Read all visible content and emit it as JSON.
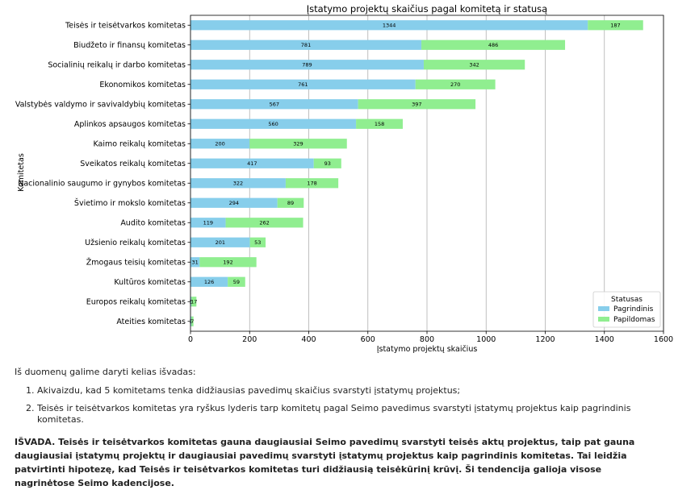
{
  "chart_data": {
    "type": "bar",
    "orientation": "horizontal",
    "stacked": true,
    "title": "Įstatymo projektų skaičius pagal komitetą ir statusą",
    "xlabel": "Įstatymo projektų skaičius",
    "ylabel": "Komitetas",
    "xlim": [
      0,
      1600
    ],
    "xticks": [
      "0",
      "200",
      "400",
      "600",
      "800",
      "1000",
      "1200",
      "1400",
      "1600"
    ],
    "grid": "vertical",
    "legend": {
      "title": "Statusas",
      "placement": "bottom-right"
    },
    "categories": [
      "Teisės ir teisėtvarkos komitetas",
      "Biudžeto ir finansų komitetas",
      "Socialinių reikalų ir darbo komitetas",
      "Ekonomikos komitetas",
      "Valstybės valdymo ir savivaldybių komitetas",
      "Aplinkos apsaugos komitetas",
      "Kaimo reikalų komitetas",
      "Sveikatos reikalų komitetas",
      "Nacionalinio saugumo ir gynybos komitetas",
      "Švietimo ir mokslo komitetas",
      "Audito komitetas",
      "Užsienio reikalų komitetas",
      "Žmogaus teisių komitetas",
      "Kultūros komitetas",
      "Europos reikalų komitetas",
      "Ateities komitetas"
    ],
    "series": [
      {
        "name": "Pagrindinis",
        "color": "#87ceeb",
        "values": [
          1344,
          781,
          789,
          761,
          567,
          560,
          200,
          417,
          322,
          294,
          119,
          201,
          31,
          126,
          3,
          3
        ]
      },
      {
        "name": "Papildomas",
        "color": "#90ee90",
        "values": [
          187,
          486,
          342,
          270,
          397,
          158,
          329,
          93,
          178,
          89,
          262,
          53,
          192,
          59,
          17,
          7
        ]
      }
    ]
  },
  "text": {
    "intro": "Iš duomenų galime daryti kelias išvadas:",
    "points": [
      "Akivaizdu, kad 5 komitetams tenka didžiausias pavedimų skaičius svarstyti įstatymų projektus;",
      "Teisės ir teisėtvarkos komitetas yra ryškus lyderis tarp komitetų pagal Seimo pavedimus svarstyti įstatymų projektus kaip pagrindinis komitetas."
    ],
    "conclusion": "IŠVADA. Teisės ir teisėtvarkos komitetas gauna daugiausiai Seimo pavedimų svarstyti teisės aktų projektus, taip pat gauna daugiausiai įstatymų projektų ir daugiausiai pavedimų svarstyti įstatymų projektus kaip pagrindinis komitetas. Tai leidžia patvirtinti hipotezę, kad Teisės ir teisėtvarkos komitetas turi didžiausią teisėkūrinį krūvį. Ši tendencija galioja visose nagrinėtose Seimo kadencijose."
  }
}
